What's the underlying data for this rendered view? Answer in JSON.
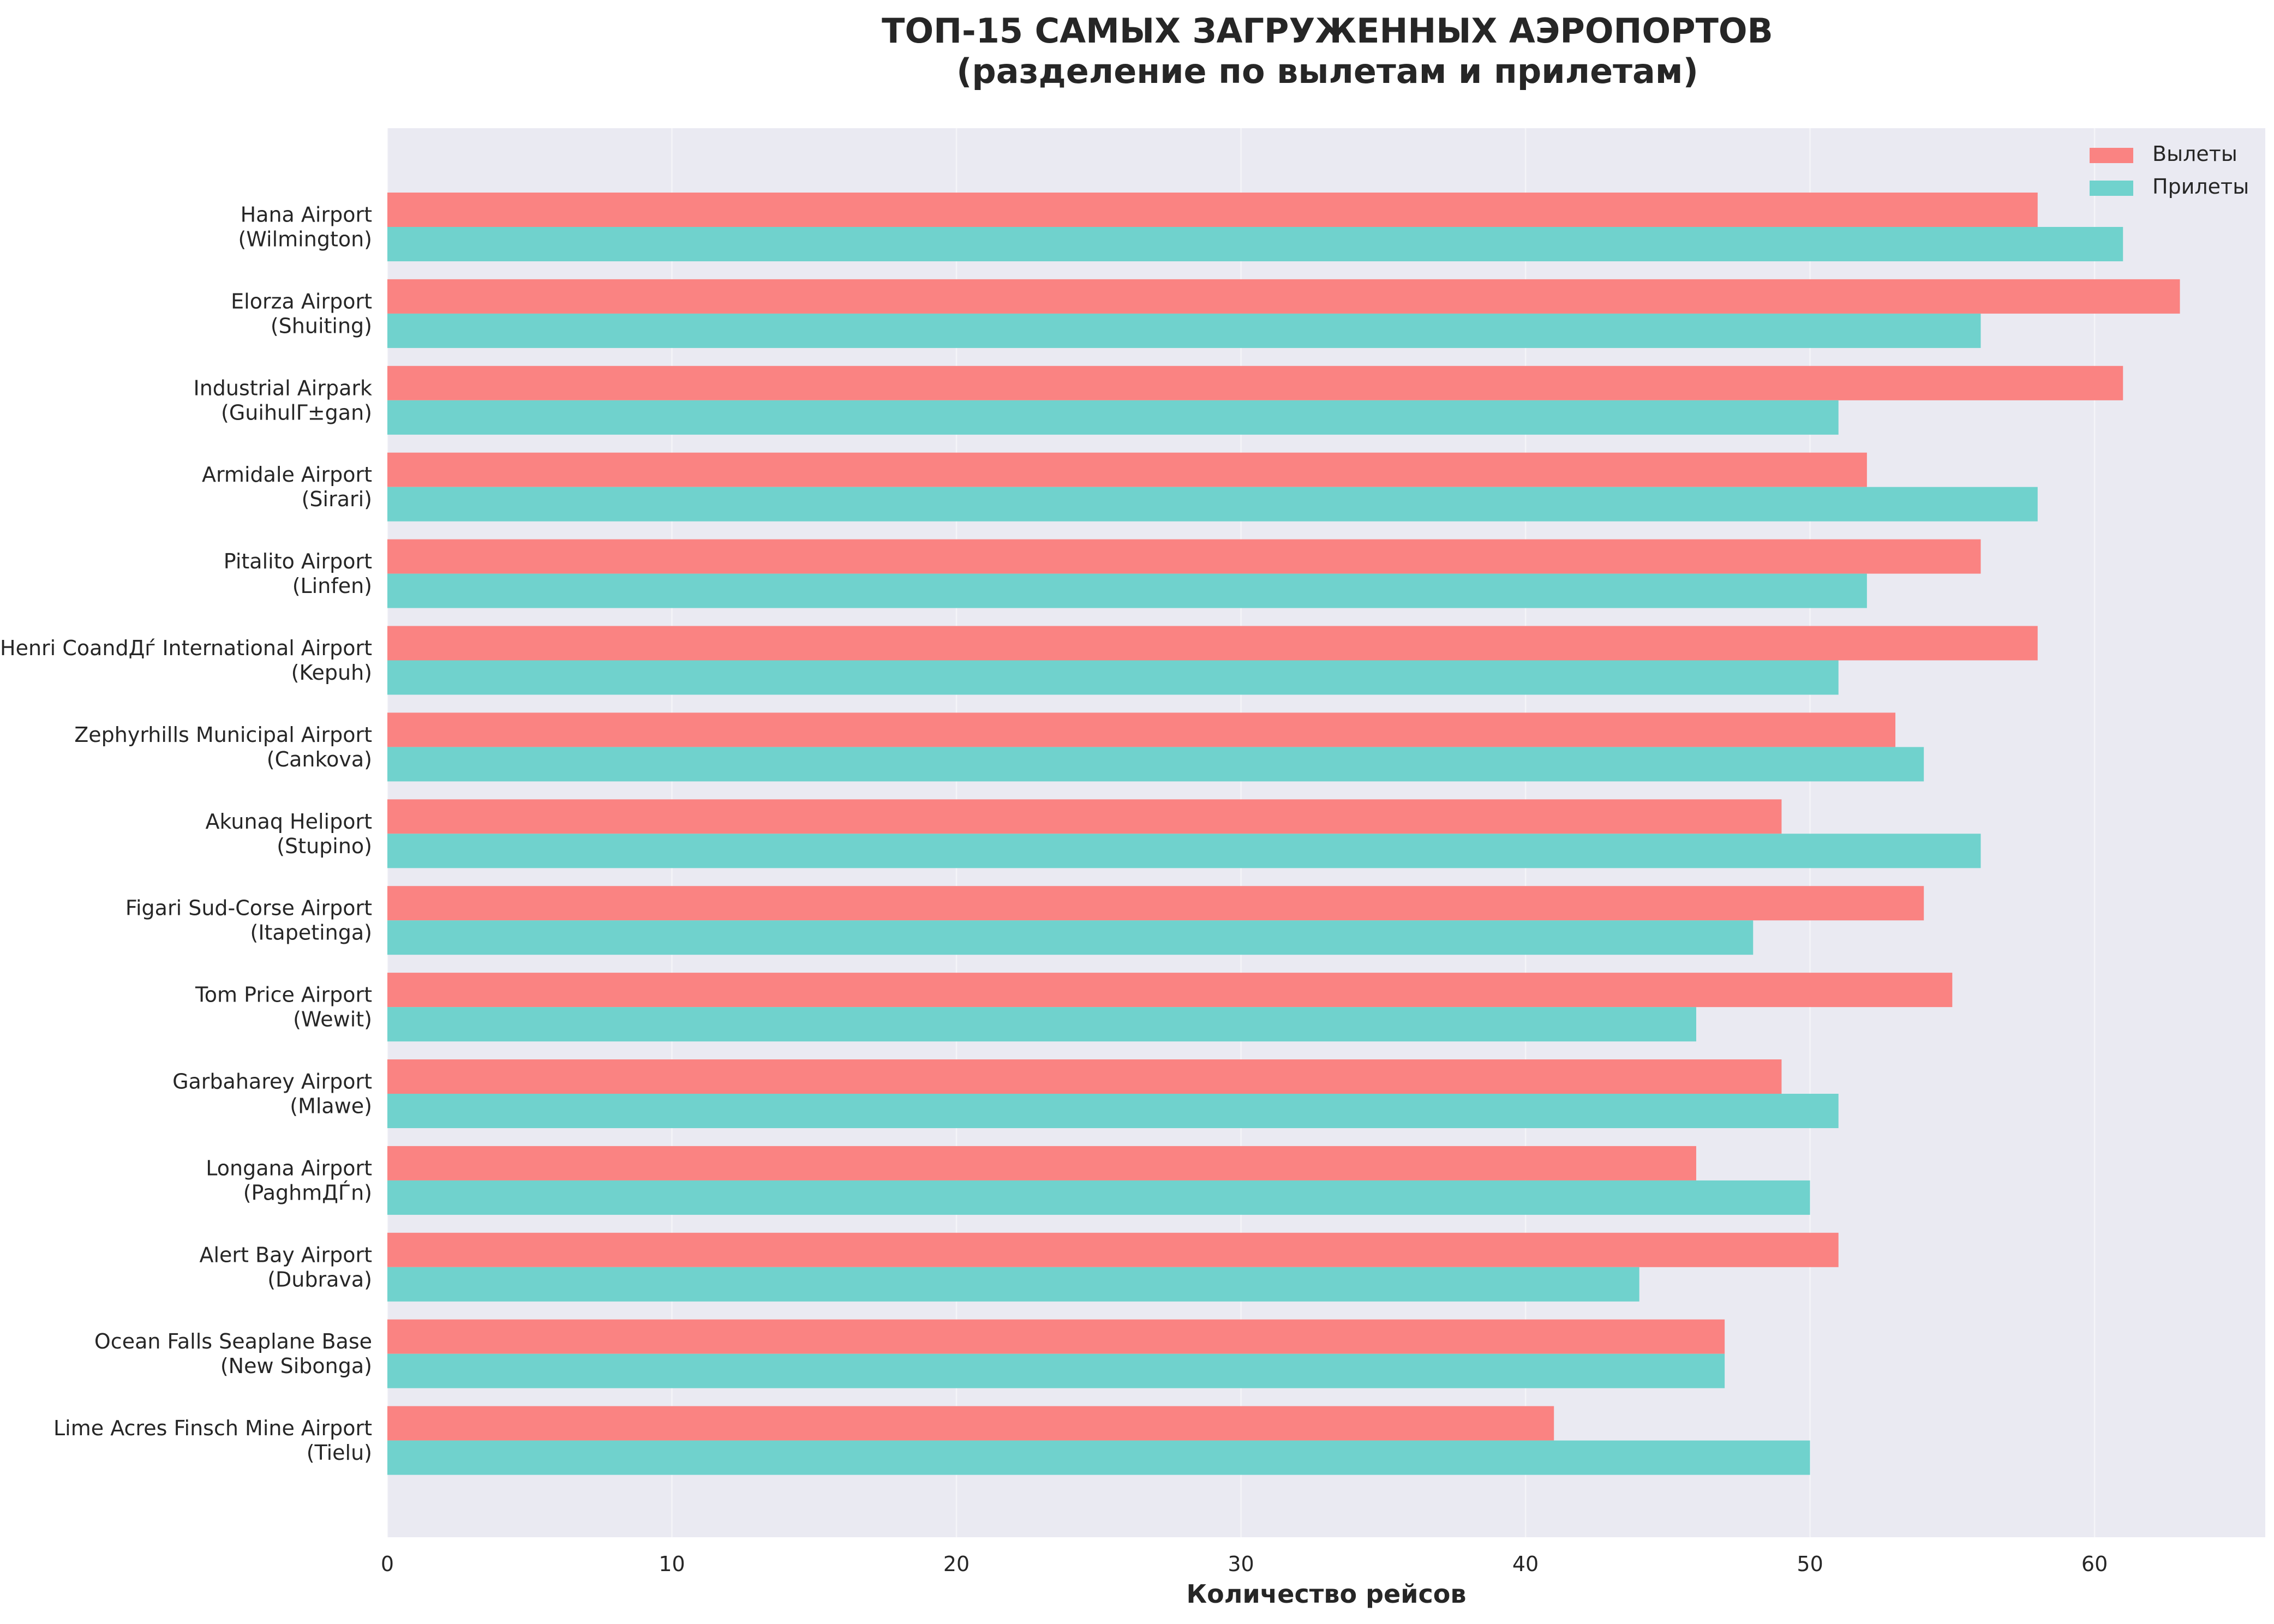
{
  "chart_data": {
    "type": "bar",
    "orientation": "horizontal",
    "title": "ТОП-15 САМЫХ ЗАГРУЖЕННЫХ АЭРОПОРТОВ\n(разделение по вылетам и прилетам)",
    "xlabel": "Количество рейсов",
    "ylabel": "",
    "xlim": [
      0,
      66
    ],
    "xticks": [
      0,
      10,
      20,
      30,
      40,
      50,
      60
    ],
    "grid": true,
    "legend_position": "top-right",
    "categories": [
      "Hana Airport\n(Wilmington)",
      "Elorza Airport\n(Shuiting)",
      "Industrial Airpark\n(GuihulΓ±gan)",
      "Armidale Airport\n(Sirari)",
      "Pitalito Airport\n(Linfen)",
      "Henri CoandДѓ International Airport\n(Kepuh)",
      "Zephyrhills Municipal Airport\n(Cankova)",
      "Akunaq Heliport\n(Stupino)",
      "Figari Sud-Corse Airport\n(Itapetinga)",
      "Tom Price Airport\n(Wewit)",
      "Garbaharey Airport\n(Mlawe)",
      "Longana Airport\n(PaghmДЃn)",
      "Alert Bay Airport\n(Dubrava)",
      "Ocean Falls Seaplane Base\n(New Sibonga)",
      "Lime Acres Finsch Mine Airport\n(Tielu)"
    ],
    "series": [
      {
        "name": "Вылеты",
        "color": "#fa8382",
        "values": [
          58,
          63,
          61,
          52,
          56,
          58,
          53,
          49,
          54,
          55,
          49,
          46,
          51,
          47,
          41
        ]
      },
      {
        "name": "Прилеты",
        "color": "#70d2cd",
        "values": [
          61,
          56,
          51,
          58,
          52,
          51,
          54,
          56,
          48,
          46,
          51,
          50,
          44,
          47,
          50
        ]
      }
    ],
    "colors": {
      "plot_background": "#eaeaf2",
      "grid": "#ffffff",
      "text": "#262626"
    }
  }
}
